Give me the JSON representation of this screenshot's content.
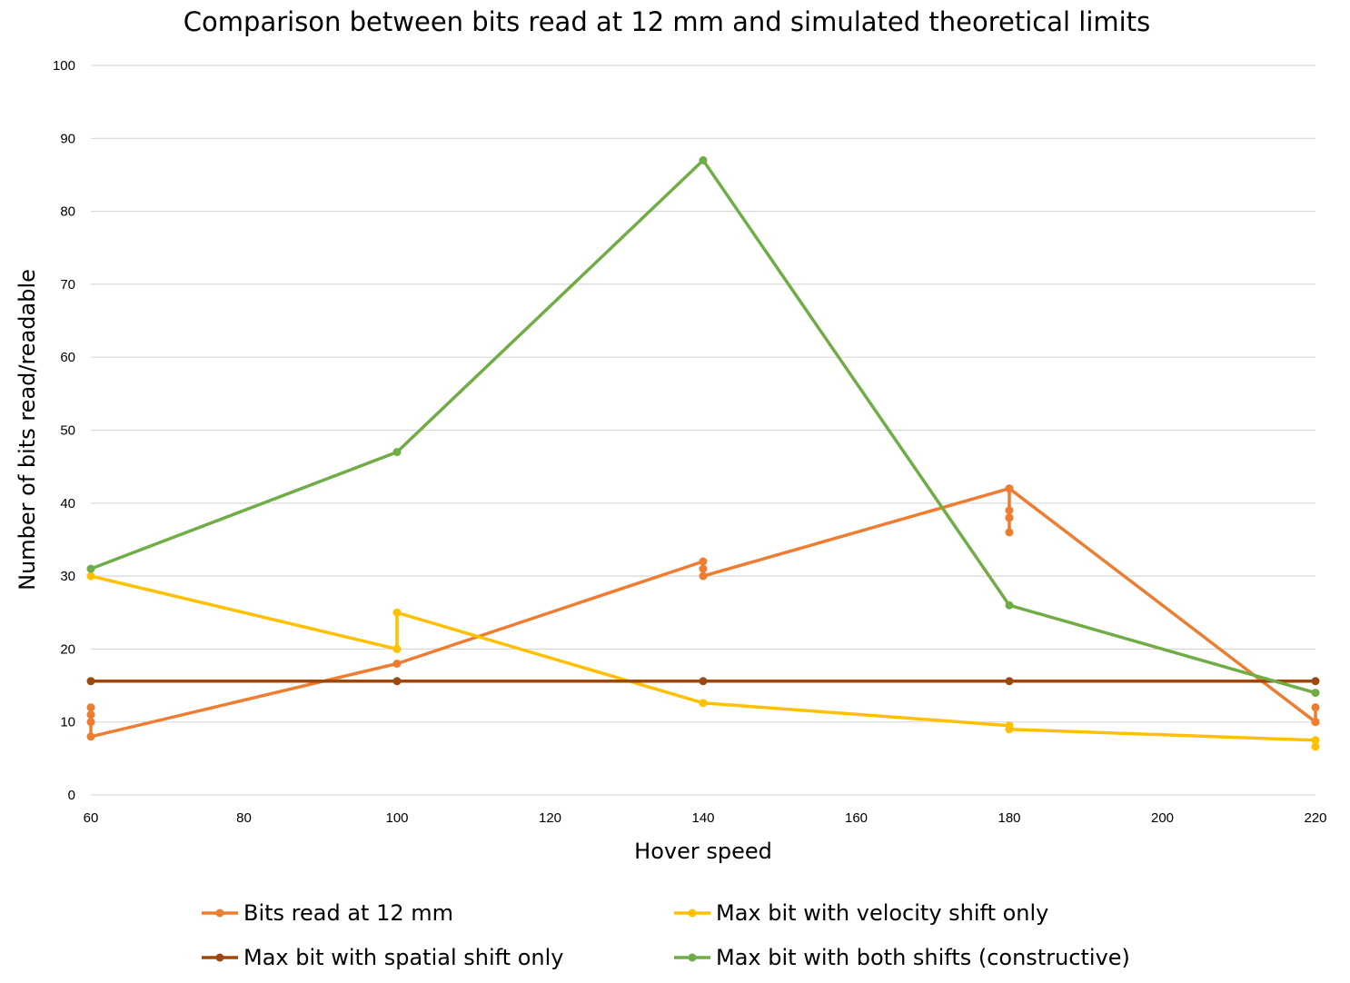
{
  "chart_data": {
    "type": "line",
    "title": "Comparison between bits read at 12 mm and simulated theoretical limits",
    "xlabel": "Hover speed",
    "ylabel": "Number of bits read/readable",
    "xlim": [
      60,
      220
    ],
    "ylim": [
      0,
      100
    ],
    "x_ticks": [
      60,
      80,
      100,
      120,
      140,
      160,
      180,
      200,
      220
    ],
    "y_ticks": [
      0,
      10,
      20,
      30,
      40,
      50,
      60,
      70,
      80,
      90,
      100
    ],
    "grid": true,
    "legend_position": "bottom",
    "series": [
      {
        "name": "Bits read at 12 mm",
        "color": "#ED7D31",
        "points": [
          [
            60,
            12
          ],
          [
            60,
            11
          ],
          [
            60,
            10
          ],
          [
            60,
            8
          ],
          [
            100,
            18
          ],
          [
            140,
            32
          ],
          [
            140,
            31
          ],
          [
            140,
            30
          ],
          [
            180,
            42
          ],
          [
            180,
            39
          ],
          [
            180,
            38
          ],
          [
            180,
            36
          ],
          [
            180,
            38
          ],
          [
            180,
            42
          ],
          [
            220,
            10
          ],
          [
            220,
            12
          ],
          [
            220,
            10
          ]
        ]
      },
      {
        "name": "Max bit with velocity shift only",
        "color": "#FFC000",
        "points": [
          [
            60,
            30
          ],
          [
            100,
            20
          ],
          [
            100,
            25
          ],
          [
            140,
            12.6
          ],
          [
            180,
            9.5
          ],
          [
            180,
            9
          ],
          [
            220,
            7.5
          ],
          [
            220,
            6.6
          ]
        ]
      },
      {
        "name": "Max bit with spatial shift only",
        "color": "#9E480E",
        "points": [
          [
            60,
            15.6
          ],
          [
            100,
            15.6
          ],
          [
            140,
            15.6
          ],
          [
            180,
            15.6
          ],
          [
            220,
            15.6
          ]
        ]
      },
      {
        "name": "Max bit with both shifts (constructive)",
        "color": "#70AD47",
        "points": [
          [
            60,
            31
          ],
          [
            100,
            47
          ],
          [
            140,
            87
          ],
          [
            180,
            26
          ],
          [
            220,
            14
          ]
        ]
      }
    ]
  }
}
